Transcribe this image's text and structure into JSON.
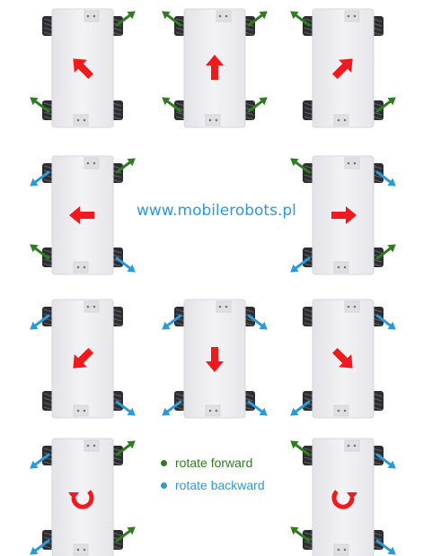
{
  "website": "www.mobilerobots.pl",
  "legend": {
    "forward": {
      "label": "rotate forward",
      "color": "#2e7d1f"
    },
    "backward": {
      "label": "rotate backward",
      "color": "#2a9ad8"
    }
  },
  "colors": {
    "motion_arrow": "#f0191e",
    "chassis": "#ededf0",
    "wheel": "#2b2d30"
  },
  "robots": [
    {
      "motion": "diagonal-forward-left",
      "wheels": {
        "fl": "none",
        "fr": "forward",
        "rl": "forward",
        "rr": "none"
      }
    },
    {
      "motion": "forward",
      "wheels": {
        "fl": "forward",
        "fr": "forward",
        "rl": "forward",
        "rr": "forward"
      }
    },
    {
      "motion": "diagonal-forward-right",
      "wheels": {
        "fl": "forward",
        "fr": "none",
        "rl": "none",
        "rr": "forward"
      }
    },
    {
      "motion": "left",
      "wheels": {
        "fl": "backward",
        "fr": "forward",
        "rl": "forward",
        "rr": "backward"
      }
    },
    {
      "motion": "right",
      "wheels": {
        "fl": "forward",
        "fr": "backward",
        "rl": "backward",
        "rr": "forward"
      }
    },
    {
      "motion": "diagonal-backward-left",
      "wheels": {
        "fl": "backward",
        "fr": "none",
        "rl": "none",
        "rr": "backward"
      }
    },
    {
      "motion": "backward",
      "wheels": {
        "fl": "backward",
        "fr": "backward",
        "rl": "backward",
        "rr": "backward"
      }
    },
    {
      "motion": "diagonal-backward-right",
      "wheels": {
        "fl": "none",
        "fr": "backward",
        "rl": "backward",
        "rr": "none"
      }
    },
    {
      "motion": "rotate-counterclockwise",
      "wheels": {
        "fl": "backward",
        "fr": "forward",
        "rl": "backward",
        "rr": "forward"
      }
    },
    {
      "motion": "rotate-clockwise",
      "wheels": {
        "fl": "forward",
        "fr": "backward",
        "rl": "forward",
        "rr": "backward"
      }
    }
  ]
}
